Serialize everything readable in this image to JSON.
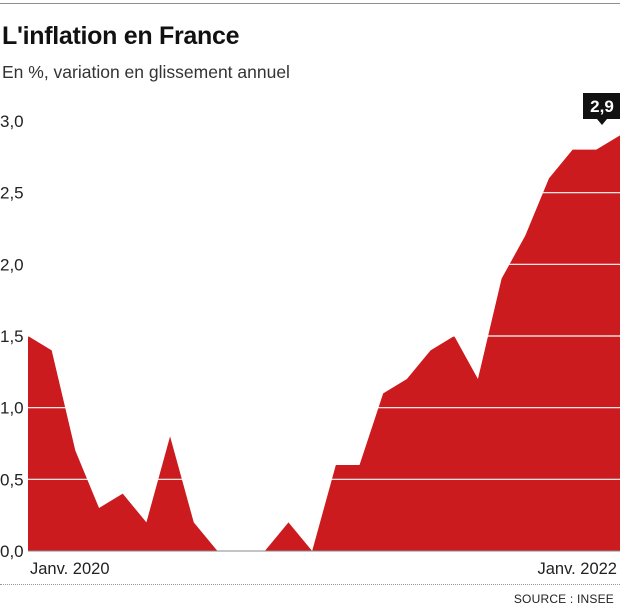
{
  "header": {
    "title": "L'inflation en France",
    "subtitle": "En %, variation en glissement annuel"
  },
  "footer": {
    "source": "SOURCE : INSEE"
  },
  "colors": {
    "area": "#cc1b1f",
    "gridline": "#ffffff",
    "callout_bg": "#111111",
    "callout_text": "#ffffff"
  },
  "chart_data": {
    "type": "area",
    "title": "L'inflation en France",
    "subtitle": "En %, variation en glissement annuel",
    "xlabel": "",
    "ylabel": "",
    "x_tick_labels": [
      "Janv. 2020",
      "Janv. 2022"
    ],
    "y_ticks": [
      "0,0",
      "0,5",
      "1,0",
      "1,5",
      "2,0",
      "2,5",
      "3,0"
    ],
    "y_tick_values": [
      0,
      0.5,
      1.0,
      1.5,
      2.0,
      2.5,
      3.0
    ],
    "ylim": [
      0,
      3.0
    ],
    "grid": true,
    "series": [
      {
        "values": [
          1.5,
          1.4,
          0.7,
          0.3,
          0.4,
          0.2,
          0.8,
          0.2,
          0.0,
          -0.1,
          0.0,
          0.2,
          0.0,
          0.6,
          0.6,
          1.1,
          1.2,
          1.4,
          1.5,
          1.2,
          1.9,
          2.2,
          2.6,
          2.8,
          2.8,
          2.9
        ]
      }
    ],
    "annotations": [
      {
        "text": "2,9",
        "value": 2.9
      }
    ]
  }
}
